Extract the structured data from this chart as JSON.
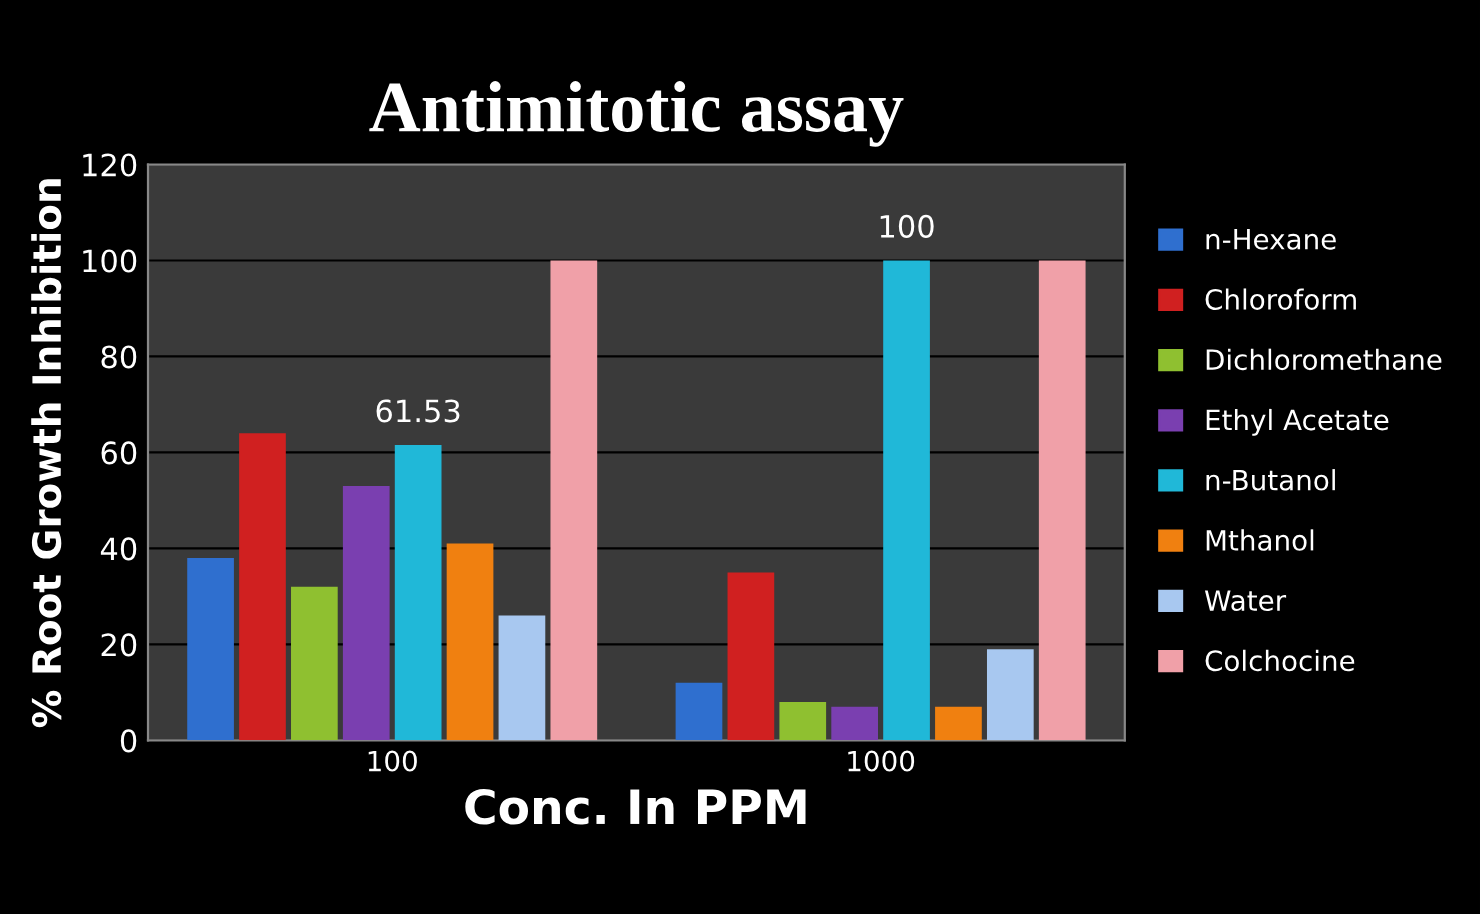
{
  "chart_data": {
    "type": "bar",
    "title": "Antimitotic assay",
    "xlabel": "Conc. In PPM",
    "ylabel": "% Root Growth Inhibition",
    "categories": [
      "100",
      "1000"
    ],
    "series": [
      {
        "name": "n-Hexane",
        "color": "#2f6fcf",
        "values": [
          38,
          12
        ]
      },
      {
        "name": "Chloroform",
        "color": "#d02020",
        "values": [
          64,
          35
        ]
      },
      {
        "name": "Dichloromethane",
        "color": "#8fc030",
        "values": [
          32,
          8
        ]
      },
      {
        "name": "Ethyl Acetate",
        "color": "#7a3fb0",
        "values": [
          53,
          7
        ]
      },
      {
        "name": "n-Butanol",
        "color": "#20b8d8",
        "values": [
          61.53,
          100
        ],
        "value_labels": [
          "61.53",
          "100"
        ]
      },
      {
        "name": "Mthanol",
        "color": "#f08010",
        "values": [
          41,
          7
        ]
      },
      {
        "name": "Water",
        "color": "#a8c8f0",
        "values": [
          26,
          19
        ]
      },
      {
        "name": "Colchocine",
        "color": "#f0a0a8",
        "values": [
          100,
          100
        ]
      }
    ],
    "ylim": [
      0,
      120
    ],
    "yticks": [
      0,
      20,
      40,
      60,
      80,
      100,
      120
    ],
    "grid": "y",
    "legend": "right"
  }
}
